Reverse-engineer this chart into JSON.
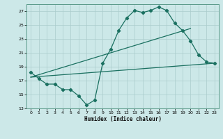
{
  "xlabel": "Humidex (Indice chaleur)",
  "bg_color": "#cce8e8",
  "grid_color": "#aacccc",
  "line_color": "#1a7060",
  "xlim": [
    -0.5,
    23.5
  ],
  "ylim": [
    13,
    28
  ],
  "xticks": [
    0,
    1,
    2,
    3,
    4,
    5,
    6,
    7,
    8,
    9,
    10,
    11,
    12,
    13,
    14,
    15,
    16,
    17,
    18,
    19,
    20,
    21,
    22,
    23
  ],
  "yticks": [
    13,
    15,
    17,
    19,
    21,
    23,
    25,
    27
  ],
  "line1_x": [
    0,
    1,
    2,
    3,
    4,
    5,
    6,
    7,
    8,
    9,
    10,
    11,
    12,
    13,
    14,
    15,
    16,
    17,
    18,
    19,
    20,
    21,
    22,
    23
  ],
  "line1_y": [
    18.2,
    17.3,
    16.5,
    16.5,
    15.7,
    15.7,
    14.8,
    13.5,
    14.2,
    19.5,
    21.5,
    24.2,
    26.0,
    27.1,
    26.8,
    27.1,
    27.6,
    27.1,
    25.3,
    24.2,
    22.7,
    20.7,
    19.7,
    19.5
  ],
  "line2_x": [
    0,
    23
  ],
  "line2_y": [
    17.5,
    19.5
  ],
  "line3_x": [
    0,
    20
  ],
  "line3_y": [
    17.5,
    24.5
  ]
}
